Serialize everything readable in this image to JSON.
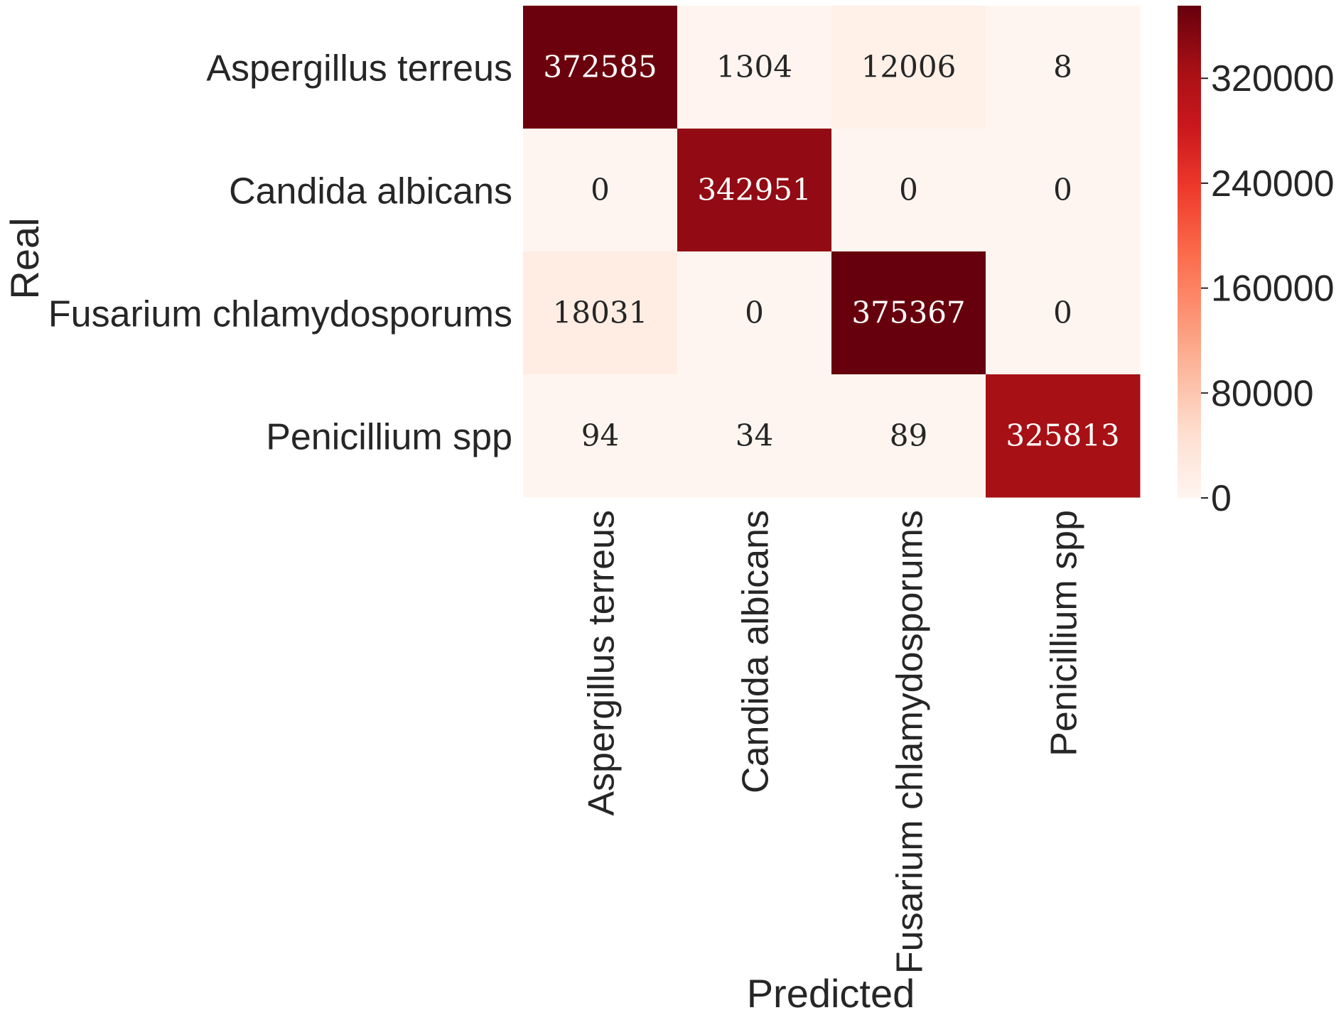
{
  "chart_data": {
    "type": "heatmap",
    "title": "",
    "xlabel": "Predicted",
    "ylabel": "Real",
    "x_categories": [
      "Aspergillus terreus",
      "Candida albicans",
      "Fusarium chlamydosporums",
      "Penicillium spp"
    ],
    "y_categories": [
      "Aspergillus terreus",
      "Candida albicans",
      "Fusarium chlamydosporums",
      "Penicillium spp"
    ],
    "values": [
      [
        372585,
        1304,
        12006,
        8
      ],
      [
        0,
        342951,
        0,
        0
      ],
      [
        18031,
        0,
        375367,
        0
      ],
      [
        94,
        34,
        89,
        325813
      ]
    ],
    "colormap": "Reds",
    "color_range": [
      0,
      375367
    ],
    "colorbar_ticks": [
      0,
      80000,
      160000,
      240000,
      320000
    ],
    "grid": false,
    "legend": "colorbar-right"
  }
}
